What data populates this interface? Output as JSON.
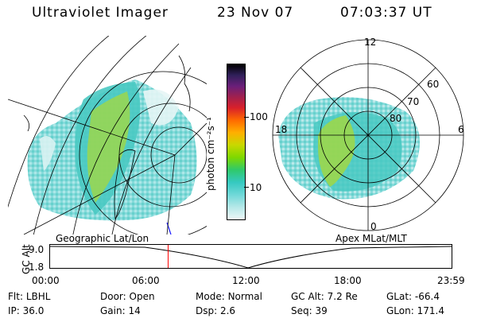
{
  "header": {
    "instrument": "Ultraviolet Imager",
    "date": "23 Nov 07",
    "time": "07:03:37 UT"
  },
  "colorbar": {
    "unit_label": "photon cm⁻²s⁻¹",
    "ticks": [
      "100",
      "10"
    ]
  },
  "left_map": {
    "label": "Geographic Lat/Lon"
  },
  "polar_map": {
    "label": "Apex MLat/MLT",
    "mlt_labels": {
      "top": "12",
      "left": "18",
      "right": "6",
      "bottom": "0"
    },
    "lat_labels": [
      "60",
      "70",
      "80"
    ]
  },
  "altitude_plot": {
    "ylabel": "GC Alt",
    "yticks": [
      "9.0",
      "1.8"
    ],
    "xticks": [
      "00:00",
      "06:00",
      "12:00",
      "18:00",
      "23:59"
    ],
    "current_time_fraction": 0.294
  },
  "info": {
    "row1": [
      {
        "key": "Flt:",
        "value": "LBHL"
      },
      {
        "key": "Door:",
        "value": "Open"
      },
      {
        "key": "Mode:",
        "value": "Normal"
      },
      {
        "key": "GC Alt:",
        "value": "7.2 Re"
      },
      {
        "key": "GLat:",
        "value": "-66.4"
      }
    ],
    "row2": [
      {
        "key": "IP:",
        "value": "36.0"
      },
      {
        "key": "Gain:",
        "value": "14"
      },
      {
        "key": "Dsp:",
        "value": "2.6"
      },
      {
        "key": "Seq:",
        "value": "39"
      },
      {
        "key": "GLon:",
        "value": "171.4"
      }
    ]
  },
  "colors": {
    "grid": "#000000",
    "marker": "#ff0000",
    "aurora_base": "#7fd8d8",
    "aurora_mid": "#49c9c2",
    "aurora_high": "#a5d83c"
  }
}
